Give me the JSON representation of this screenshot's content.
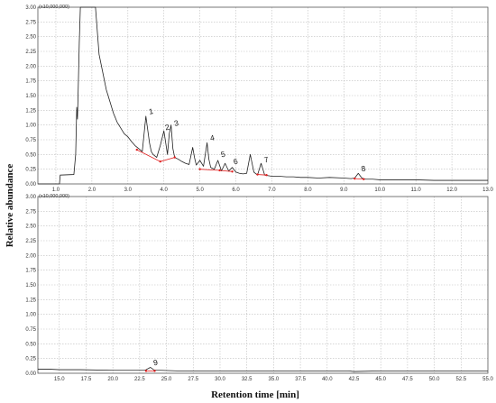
{
  "ylabel": "Relative abundance",
  "xlabel": "Retention time [min]",
  "chart_data": [
    {
      "type": "line",
      "panel": "top",
      "y_multiplier": "(x10,000,000)",
      "xlim": [
        0.5,
        13.0
      ],
      "ylim": [
        0,
        3.0
      ],
      "x_ticks": [
        "1.0",
        "2.0",
        "3.0",
        "4.0",
        "5.0",
        "6.0",
        "7.0",
        "8.0",
        "9.0",
        "10.0",
        "11.0",
        "12.0",
        "13.0"
      ],
      "y_ticks": [
        "0.00",
        "0.25",
        "0.50",
        "0.75",
        "1.00",
        "1.25",
        "1.50",
        "1.75",
        "2.00",
        "2.25",
        "2.50",
        "2.75",
        "3.00"
      ],
      "x_tick_values": [
        1,
        2,
        3,
        4,
        5,
        6,
        7,
        8,
        9,
        10,
        11,
        12,
        13
      ],
      "y_tick_values": [
        0,
        0.25,
        0.5,
        0.75,
        1.0,
        1.25,
        1.5,
        1.75,
        2.0,
        2.25,
        2.5,
        2.75,
        3.0
      ],
      "grid": true,
      "series": [
        {
          "x": [
            0.5,
            1.1,
            1.12,
            1.5,
            1.55,
            1.58,
            1.6,
            1.62,
            1.65,
            1.68,
            1.72,
            1.8,
            2.0,
            2.05,
            2.1,
            2.2,
            2.3,
            2.4,
            2.5,
            2.6,
            2.7,
            2.8,
            2.9,
            3.0,
            3.1,
            3.2,
            3.3,
            3.4,
            3.5,
            3.6,
            3.65,
            3.7,
            3.8,
            3.9,
            4.0,
            4.1,
            4.15,
            4.2,
            4.25,
            4.3,
            4.4,
            4.5,
            4.6,
            4.7,
            4.8,
            4.85,
            4.9,
            5.0,
            5.1,
            5.2,
            5.25,
            5.3,
            5.4,
            5.5,
            5.6,
            5.7,
            5.8,
            5.9,
            6.0,
            6.1,
            6.2,
            6.3,
            6.4,
            6.5,
            6.6,
            6.7,
            6.8,
            6.9,
            7.0,
            7.2,
            7.4,
            7.6,
            7.8,
            8.0,
            8.3,
            8.6,
            9.0,
            9.2,
            9.3,
            9.4,
            9.5,
            9.6,
            9.8,
            10.0,
            10.5,
            11.0,
            11.5,
            12.0,
            12.5,
            13.0
          ],
          "y": [
            0.0,
            0.0,
            0.15,
            0.16,
            0.5,
            1.3,
            1.1,
            1.6,
            2.4,
            3.0,
            3.1,
            3.1,
            3.1,
            3.1,
            3.1,
            2.2,
            1.9,
            1.6,
            1.4,
            1.2,
            1.05,
            0.95,
            0.85,
            0.8,
            0.72,
            0.65,
            0.6,
            0.55,
            1.15,
            0.7,
            0.55,
            0.5,
            0.45,
            0.65,
            0.9,
            0.5,
            0.85,
            1.0,
            0.6,
            0.45,
            0.42,
            0.38,
            0.35,
            0.33,
            0.62,
            0.45,
            0.32,
            0.4,
            0.3,
            0.7,
            0.42,
            0.28,
            0.25,
            0.4,
            0.22,
            0.35,
            0.22,
            0.28,
            0.2,
            0.18,
            0.17,
            0.18,
            0.5,
            0.2,
            0.15,
            0.35,
            0.15,
            0.14,
            0.13,
            0.13,
            0.12,
            0.12,
            0.11,
            0.11,
            0.1,
            0.11,
            0.1,
            0.09,
            0.1,
            0.18,
            0.1,
            0.08,
            0.08,
            0.07,
            0.07,
            0.07,
            0.06,
            0.06,
            0.06,
            0.06
          ]
        }
      ],
      "peaks": [
        {
          "label": "1",
          "x": 3.5,
          "y": 1.15
        },
        {
          "label": "2",
          "x": 3.95,
          "y": 0.88
        },
        {
          "label": "3",
          "x": 4.2,
          "y": 0.95
        },
        {
          "label": "4",
          "x": 5.2,
          "y": 0.7
        },
        {
          "label": "5",
          "x": 5.5,
          "y": 0.42
        },
        {
          "label": "6",
          "x": 5.85,
          "y": 0.3
        },
        {
          "label": "7",
          "x": 6.7,
          "y": 0.33
        },
        {
          "label": "8",
          "x": 9.4,
          "y": 0.18
        }
      ],
      "baselines": [
        [
          [
            3.25,
            0.58
          ],
          [
            3.9,
            0.38
          ],
          [
            4.3,
            0.45
          ]
        ],
        [
          [
            5.0,
            0.25
          ],
          [
            5.55,
            0.23
          ],
          [
            5.9,
            0.21
          ]
        ],
        [
          [
            6.6,
            0.16
          ],
          [
            6.85,
            0.15
          ]
        ],
        [
          [
            9.3,
            0.09
          ],
          [
            9.55,
            0.08
          ]
        ]
      ]
    },
    {
      "type": "line",
      "panel": "bottom",
      "y_multiplier": "(x10,000,000)",
      "xlim": [
        13.0,
        55.0
      ],
      "ylim": [
        0,
        3.0
      ],
      "x_ticks": [
        "15.0",
        "17.5",
        "20.0",
        "22.5",
        "25.0",
        "27.5",
        "30.0",
        "32.5",
        "35.0",
        "37.5",
        "40.0",
        "42.5",
        "45.0",
        "47.5",
        "50.0",
        "52.5",
        "55.0"
      ],
      "y_ticks": [
        "0.00",
        "0.25",
        "0.50",
        "0.75",
        "1.00",
        "1.25",
        "1.50",
        "1.75",
        "2.00",
        "2.25",
        "2.50",
        "2.75",
        "3.00"
      ],
      "x_tick_values": [
        15,
        17.5,
        20,
        22.5,
        25,
        27.5,
        30,
        32.5,
        35,
        37.5,
        40,
        42.5,
        45,
        47.5,
        50,
        52.5,
        55
      ],
      "y_tick_values": [
        0,
        0.25,
        0.5,
        0.75,
        1.0,
        1.25,
        1.5,
        1.75,
        2.0,
        2.25,
        2.5,
        2.75,
        3.0
      ],
      "grid": true,
      "series": [
        {
          "x": [
            13.0,
            14.0,
            15.0,
            17.0,
            20.0,
            22.0,
            23.0,
            23.5,
            23.8,
            24.0,
            24.5,
            26.0,
            28.0,
            30.0,
            35.0,
            40.0,
            42.0,
            42.5,
            45.0,
            50.0,
            55.0
          ],
          "y": [
            0.07,
            0.07,
            0.06,
            0.06,
            0.05,
            0.05,
            0.05,
            0.1,
            0.06,
            0.05,
            0.05,
            0.04,
            0.04,
            0.04,
            0.04,
            0.04,
            0.04,
            0.03,
            0.04,
            0.04,
            0.04
          ]
        }
      ],
      "peaks": [
        {
          "label": "9",
          "x": 23.5,
          "y": 0.1
        }
      ],
      "baselines": [
        [
          [
            23.1,
            0.04
          ],
          [
            23.9,
            0.04
          ]
        ]
      ]
    }
  ]
}
